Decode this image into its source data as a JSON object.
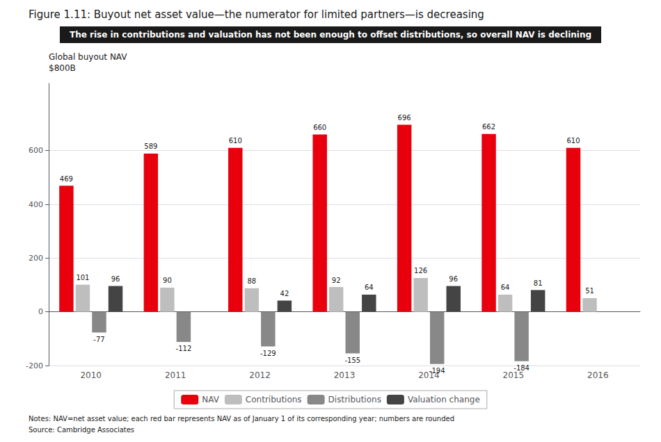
{
  "chart_data": {
    "type": "bar",
    "title": "Figure 1.11: Buyout net asset value—the numerator for limited partners—is decreasing",
    "subtitle": "The rise in contributions and valuation has not been enough to offset distributions, so overall NAV is declining",
    "ylabel": "Global buyout NAV\n$800B",
    "annotations": [
      "Notes: NAV=net asset value; each red bar represents NAV as of January 1 of its corresponding year; numbers are rounded",
      "Source: Cambridge Associates"
    ],
    "categories": [
      "2010",
      "2011",
      "2012",
      "2013",
      "2014",
      "2015",
      "2016"
    ],
    "series": [
      {
        "name": "NAV",
        "color": "#E8000D",
        "values": [
          469,
          589,
          610,
          660,
          696,
          662,
          610
        ]
      },
      {
        "name": "Contributions",
        "color": "#BEBEBE",
        "values": [
          101,
          90,
          88,
          92,
          126,
          64,
          51
        ]
      },
      {
        "name": "Distributions",
        "color": "#888888",
        "values": [
          -77,
          -112,
          -129,
          -155,
          -194,
          -184,
          null
        ]
      },
      {
        "name": "Valuation change",
        "color": "#444444",
        "values": [
          96,
          null,
          42,
          64,
          96,
          81,
          null
        ]
      }
    ],
    "ylim": [
      -200,
      850
    ],
    "yticks": [
      -200,
      0,
      200,
      400,
      600
    ],
    "grid": true,
    "legend": "bottom",
    "data_labels": true
  }
}
